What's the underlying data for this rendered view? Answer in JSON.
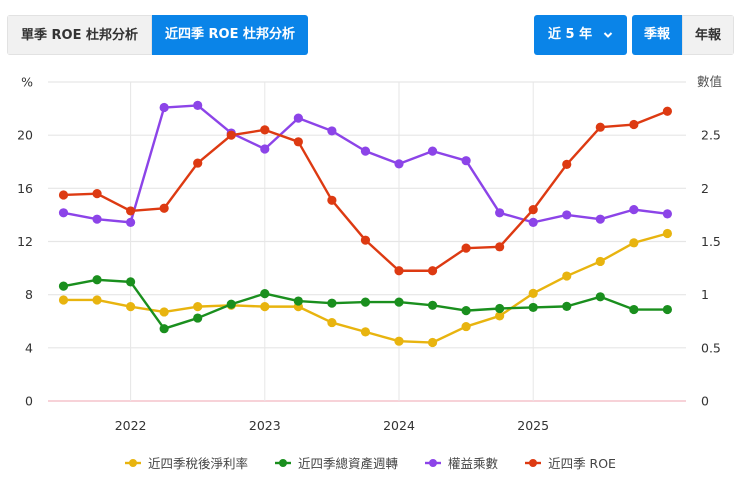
{
  "tabs": [
    {
      "label": "單季 ROE 杜邦分析",
      "active": false
    },
    {
      "label": "近四季 ROE 杜邦分析",
      "active": true
    }
  ],
  "range_select": {
    "value": "近 5 年",
    "icon": "chevron-down-icon"
  },
  "period_toggle": [
    {
      "label": "季報",
      "active": true
    },
    {
      "label": "年報",
      "active": false
    }
  ],
  "chart_data": {
    "type": "line",
    "title": "",
    "x": [
      "2021Q2",
      "2021Q3",
      "2021Q4",
      "2022Q1",
      "2022Q2",
      "2022Q3",
      "2022Q4",
      "2023Q1",
      "2023Q2",
      "2023Q3",
      "2023Q4",
      "2024Q1",
      "2024Q2",
      "2024Q3",
      "2024Q4",
      "2025Q1",
      "2025Q2",
      "2025Q3",
      "2025Q4"
    ],
    "x_tick_labels": [
      "2022",
      "2023",
      "2024",
      "2025"
    ],
    "y_left": {
      "label": "%",
      "ticks": [
        0,
        4,
        8,
        12,
        16,
        20
      ],
      "range": [
        0,
        24
      ]
    },
    "y_right": {
      "label": "數值",
      "ticks": [
        0,
        0.5,
        1,
        1.5,
        2,
        2.5
      ],
      "range": [
        0,
        3
      ]
    },
    "grid": true,
    "legend_position": "bottom",
    "series": [
      {
        "name": "近四季稅後淨利率",
        "axis": "left",
        "color": "#e8b40f",
        "values": [
          7.6,
          7.6,
          7.1,
          6.7,
          7.1,
          7.2,
          7.1,
          7.1,
          5.9,
          5.2,
          4.5,
          4.4,
          5.6,
          6.4,
          8.1,
          9.4,
          10.5,
          11.9,
          12.6
        ]
      },
      {
        "name": "近四季總資產週轉",
        "axis": "right",
        "color": "#1a8f1e",
        "values": [
          1.08,
          1.14,
          1.12,
          0.68,
          0.78,
          0.91,
          1.01,
          0.94,
          0.92,
          0.93,
          0.93,
          0.9,
          0.85,
          0.87,
          0.88,
          0.89,
          0.98,
          0.86,
          0.86
        ]
      },
      {
        "name": "權益乘數",
        "axis": "right",
        "color": "#8c44e8",
        "values": [
          1.77,
          1.71,
          1.68,
          2.76,
          2.78,
          2.52,
          2.37,
          2.66,
          2.54,
          2.35,
          2.23,
          2.35,
          2.26,
          1.77,
          1.68,
          1.75,
          1.71,
          1.8,
          1.76
        ]
      },
      {
        "name": "近四季 ROE",
        "axis": "left",
        "color": "#dd3a12",
        "values": [
          15.5,
          15.6,
          14.3,
          14.5,
          17.9,
          20.0,
          20.4,
          19.5,
          15.1,
          12.1,
          9.8,
          9.8,
          11.5,
          11.6,
          14.4,
          17.8,
          20.6,
          20.8,
          21.8
        ]
      }
    ]
  }
}
